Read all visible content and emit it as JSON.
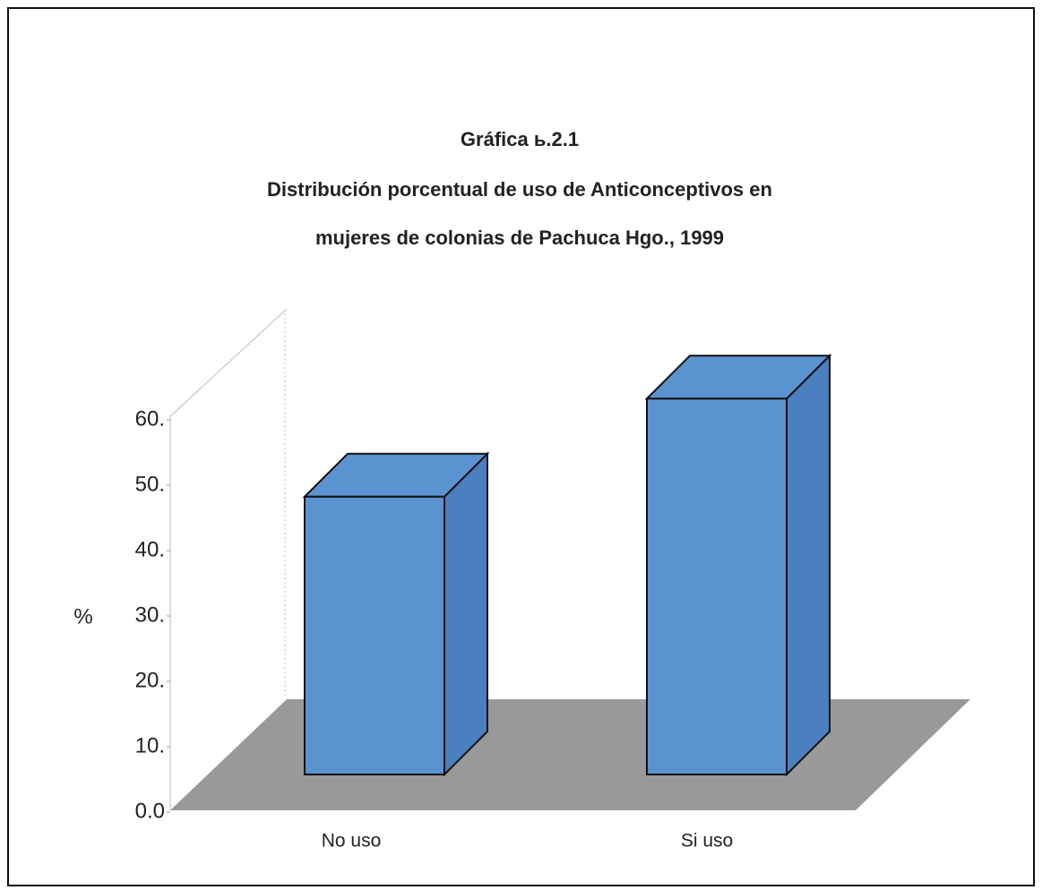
{
  "chart_data": {
    "type": "bar3d",
    "title": "Gráfica ь.2.1",
    "subtitle": [
      "Distribución porcentual de uso de Anticonceptivos en",
      "mujeres de colonias de Pachuca Hgo., 1999"
    ],
    "y_label": "%",
    "categories": [
      "No uso",
      "Si uso"
    ],
    "values": [
      42.5,
      57.5
    ],
    "color": "#5b93d0",
    "ylim": [
      0,
      60
    ],
    "yticks": [
      {
        "value": 0,
        "label": "0.0"
      },
      {
        "value": 10,
        "label": "10."
      },
      {
        "value": 20,
        "label": "20."
      },
      {
        "value": 30,
        "label": "30."
      },
      {
        "value": 40,
        "label": "40."
      },
      {
        "value": 50,
        "label": "50."
      },
      {
        "value": 60,
        "label": "60."
      }
    ]
  }
}
